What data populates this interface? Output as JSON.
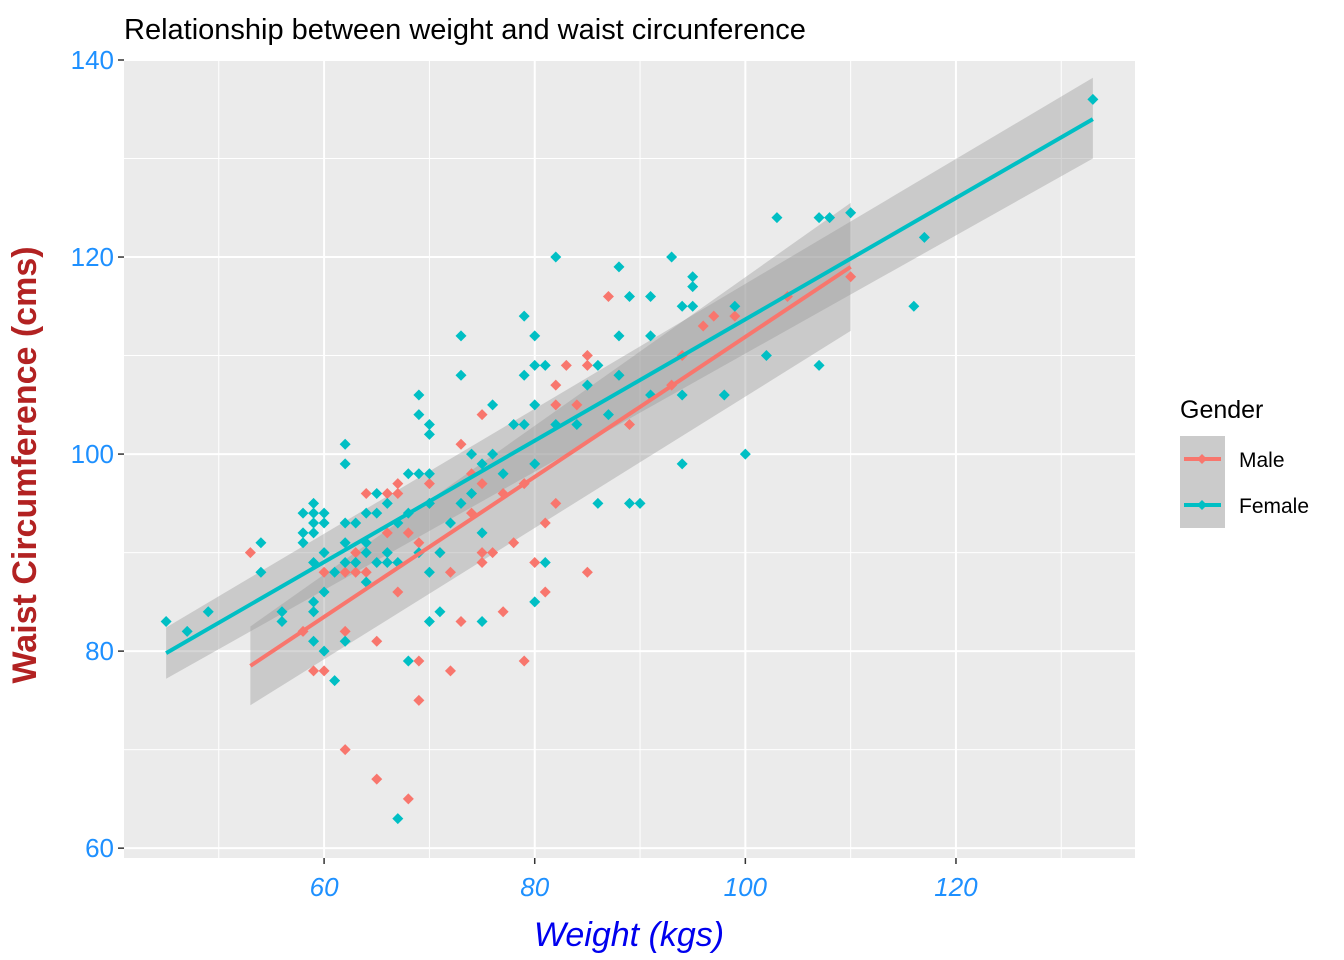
{
  "chart_data": {
    "type": "scatter",
    "title": "Relationship between weight and waist circunference",
    "xlabel": "Weight (kgs)",
    "ylabel": "Waist Circumference (cms)",
    "xlim": [
      41,
      137
    ],
    "ylim": [
      59,
      140
    ],
    "xticks": [
      60,
      80,
      100,
      120
    ],
    "yticks": [
      60,
      80,
      100,
      120,
      140
    ],
    "xtick_labels": [
      "60",
      "80",
      "100",
      "120"
    ],
    "ytick_labels": [
      "60",
      "80",
      "100",
      "120",
      "140"
    ],
    "grid": true,
    "legend": {
      "title": "Gender",
      "position": "right"
    },
    "series": [
      {
        "name": "Male",
        "color": "#F8766D",
        "points": [
          [
            53,
            90
          ],
          [
            58,
            82
          ],
          [
            59,
            78
          ],
          [
            60,
            78
          ],
          [
            60,
            88
          ],
          [
            62,
            70
          ],
          [
            62,
            82
          ],
          [
            62,
            88
          ],
          [
            63,
            88
          ],
          [
            63,
            90
          ],
          [
            64,
            96
          ],
          [
            64,
            88
          ],
          [
            65,
            67
          ],
          [
            65,
            81
          ],
          [
            66,
            96
          ],
          [
            66,
            92
          ],
          [
            67,
            96
          ],
          [
            67,
            97
          ],
          [
            67,
            86
          ],
          [
            68,
            65
          ],
          [
            68,
            92
          ],
          [
            69,
            79
          ],
          [
            69,
            75
          ],
          [
            69,
            91
          ],
          [
            70,
            97
          ],
          [
            70,
            95
          ],
          [
            71,
            90
          ],
          [
            72,
            88
          ],
          [
            72,
            78
          ],
          [
            73,
            83
          ],
          [
            73,
            101
          ],
          [
            74,
            98
          ],
          [
            74,
            94
          ],
          [
            75,
            104
          ],
          [
            75,
            97
          ],
          [
            75,
            90
          ],
          [
            75,
            89
          ],
          [
            76,
            90
          ],
          [
            77,
            84
          ],
          [
            77,
            96
          ],
          [
            78,
            91
          ],
          [
            79,
            79
          ],
          [
            79,
            97
          ],
          [
            80,
            89
          ],
          [
            81,
            93
          ],
          [
            81,
            86
          ],
          [
            82,
            95
          ],
          [
            82,
            105
          ],
          [
            82,
            107
          ],
          [
            83,
            109
          ],
          [
            84,
            105
          ],
          [
            85,
            110
          ],
          [
            85,
            88
          ],
          [
            85,
            109
          ],
          [
            87,
            116
          ],
          [
            88,
            108
          ],
          [
            89,
            103
          ],
          [
            93,
            107
          ],
          [
            94,
            110
          ],
          [
            96,
            113
          ],
          [
            97,
            114
          ],
          [
            99,
            114
          ],
          [
            104,
            116
          ],
          [
            110,
            118
          ]
        ],
        "fit": {
          "x": [
            53,
            110
          ],
          "y": [
            78.5,
            119
          ],
          "ci_low": [
            74.5,
            112.5
          ],
          "ci_high": [
            82.5,
            125.5
          ]
        }
      },
      {
        "name": "Female",
        "color": "#00BFC4",
        "points": [
          [
            45,
            83
          ],
          [
            47,
            82
          ],
          [
            49,
            84
          ],
          [
            54,
            91
          ],
          [
            54,
            88
          ],
          [
            56,
            84
          ],
          [
            56,
            83
          ],
          [
            58,
            94
          ],
          [
            58,
            91
          ],
          [
            58,
            92
          ],
          [
            59,
            95
          ],
          [
            59,
            94
          ],
          [
            59,
            93
          ],
          [
            59,
            92
          ],
          [
            59,
            89
          ],
          [
            59,
            85
          ],
          [
            59,
            84
          ],
          [
            59,
            81
          ],
          [
            60,
            94
          ],
          [
            60,
            93
          ],
          [
            60,
            90
          ],
          [
            60,
            86
          ],
          [
            60,
            80
          ],
          [
            61,
            88
          ],
          [
            61,
            77
          ],
          [
            62,
            101
          ],
          [
            62,
            99
          ],
          [
            62,
            93
          ],
          [
            62,
            91
          ],
          [
            62,
            89
          ],
          [
            62,
            81
          ],
          [
            63,
            93
          ],
          [
            63,
            89
          ],
          [
            64,
            91
          ],
          [
            64,
            90
          ],
          [
            64,
            87
          ],
          [
            64,
            94
          ],
          [
            65,
            96
          ],
          [
            65,
            94
          ],
          [
            65,
            89
          ],
          [
            66,
            95
          ],
          [
            66,
            90
          ],
          [
            66,
            89
          ],
          [
            67,
            93
          ],
          [
            67,
            89
          ],
          [
            67,
            63
          ],
          [
            68,
            98
          ],
          [
            68,
            94
          ],
          [
            68,
            79
          ],
          [
            69,
            106
          ],
          [
            69,
            104
          ],
          [
            69,
            98
          ],
          [
            69,
            90
          ],
          [
            70,
            103
          ],
          [
            70,
            102
          ],
          [
            70,
            98
          ],
          [
            70,
            95
          ],
          [
            70,
            88
          ],
          [
            70,
            83
          ],
          [
            71,
            84
          ],
          [
            71,
            90
          ],
          [
            72,
            93
          ],
          [
            73,
            112
          ],
          [
            73,
            108
          ],
          [
            73,
            95
          ],
          [
            74,
            100
          ],
          [
            74,
            96
          ],
          [
            75,
            99
          ],
          [
            75,
            92
          ],
          [
            75,
            83
          ],
          [
            76,
            105
          ],
          [
            76,
            100
          ],
          [
            77,
            98
          ],
          [
            78,
            103
          ],
          [
            79,
            114
          ],
          [
            79,
            108
          ],
          [
            79,
            103
          ],
          [
            80,
            112
          ],
          [
            80,
            109
          ],
          [
            80,
            105
          ],
          [
            80,
            99
          ],
          [
            80,
            85
          ],
          [
            81,
            109
          ],
          [
            81,
            89
          ],
          [
            82,
            120
          ],
          [
            82,
            103
          ],
          [
            84,
            103
          ],
          [
            85,
            107
          ],
          [
            86,
            109
          ],
          [
            86,
            95
          ],
          [
            87,
            104
          ],
          [
            88,
            119
          ],
          [
            88,
            112
          ],
          [
            88,
            108
          ],
          [
            89,
            116
          ],
          [
            89,
            95
          ],
          [
            90,
            95
          ],
          [
            91,
            116
          ],
          [
            91,
            112
          ],
          [
            91,
            106
          ],
          [
            93,
            120
          ],
          [
            94,
            115
          ],
          [
            94,
            106
          ],
          [
            94,
            99
          ],
          [
            95,
            118
          ],
          [
            95,
            117
          ],
          [
            95,
            115
          ],
          [
            98,
            106
          ],
          [
            99,
            115
          ],
          [
            100,
            100
          ],
          [
            102,
            110
          ],
          [
            103,
            124
          ],
          [
            107,
            124
          ],
          [
            107,
            109
          ],
          [
            108,
            124
          ],
          [
            110,
            124.5
          ],
          [
            116,
            115
          ],
          [
            117,
            122
          ],
          [
            133,
            136
          ]
        ],
        "fit": {
          "x": [
            45,
            133
          ],
          "y": [
            79.8,
            134
          ],
          "ci_low": [
            77.2,
            130
          ],
          "ci_high": [
            82.4,
            138.2
          ]
        }
      }
    ]
  }
}
